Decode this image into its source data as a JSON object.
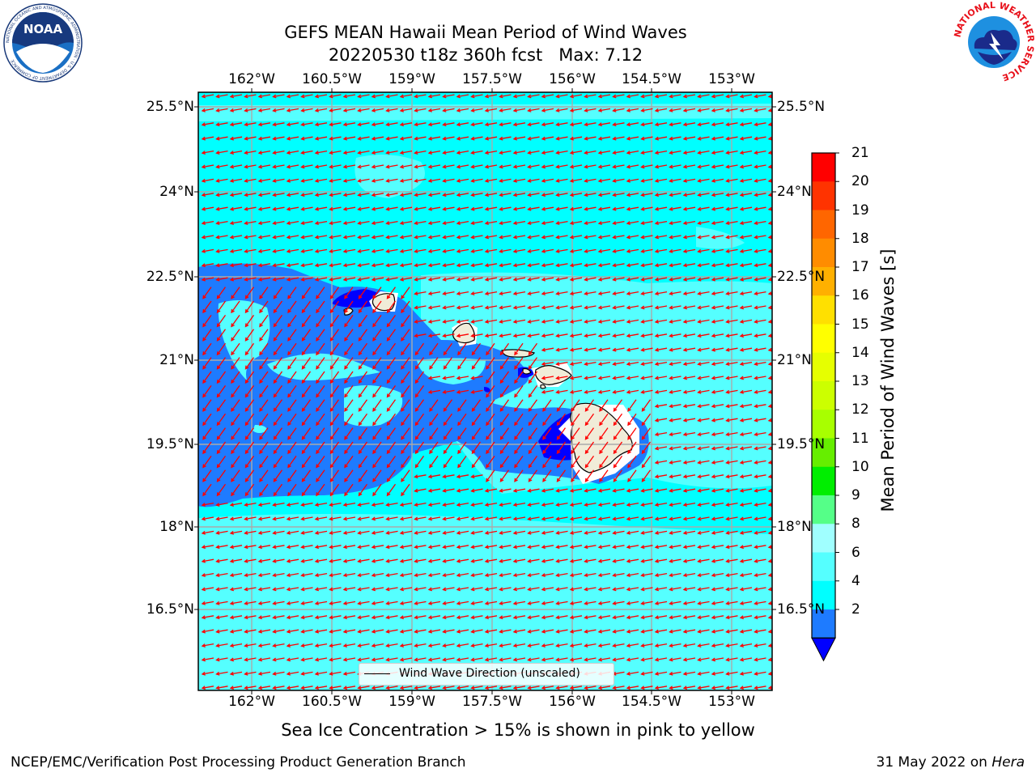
{
  "title_line1": "GEFS MEAN Hawaii Mean Period of Wind Waves",
  "title_line2": "20220530 t18z 360h fcst   Max: 7.12",
  "lon_ticks": [
    "162°W",
    "160.5°W",
    "159°W",
    "157.5°W",
    "156°W",
    "154.5°W",
    "153°W"
  ],
  "lat_ticks": [
    "25.5°N",
    "24°N",
    "22.5°N",
    "21°N",
    "19.5°N",
    "18°N",
    "16.5°N"
  ],
  "legend_label": "Wind Wave Direction (unscaled)",
  "colorbar": {
    "title": "Mean Period of Wind Waves [s]",
    "labels": [
      "21",
      "20",
      "19",
      "18",
      "17",
      "16",
      "15",
      "14",
      "13",
      "12",
      "11",
      "10",
      "9",
      "8",
      "6",
      "4",
      "2"
    ],
    "colors": [
      "#ff0000",
      "#ff3300",
      "#ff6600",
      "#ff8c00",
      "#ffb000",
      "#ffe000",
      "#ffff00",
      "#e6ff00",
      "#ccff00",
      "#a8ff00",
      "#66ee00",
      "#00ee00",
      "#55ff88",
      "#a0ffff",
      "#55ffff",
      "#00ffff",
      "#1e7bff"
    ],
    "extend_color": "#0000ff"
  },
  "map_colors": {
    "ocean_main": "#00ffff",
    "ocean_light": "#55ffff",
    "shallow_blue": "#1e7bff",
    "deep_blue": "#0000ff",
    "land": "#f0ecd8",
    "arrow": "#ff0000",
    "grid": "#aaaaaa"
  },
  "subtitle": "Sea Ice Concentration > 15% is shown in pink to yellow",
  "footer_left": "NCEP/EMC/Verification Post Processing Product Generation Branch",
  "footer_right_date": "31 May 2022 on",
  "footer_right_host": "Hera",
  "logos": {
    "noaa_text": "NOAA",
    "noaa_ring": "NATIONAL OCEANIC AND ATMOSPHERIC ADMINISTRATION · U.S. DEPARTMENT OF COMMERCE",
    "nws_ring": "NATIONAL WEATHER SERVICE"
  }
}
